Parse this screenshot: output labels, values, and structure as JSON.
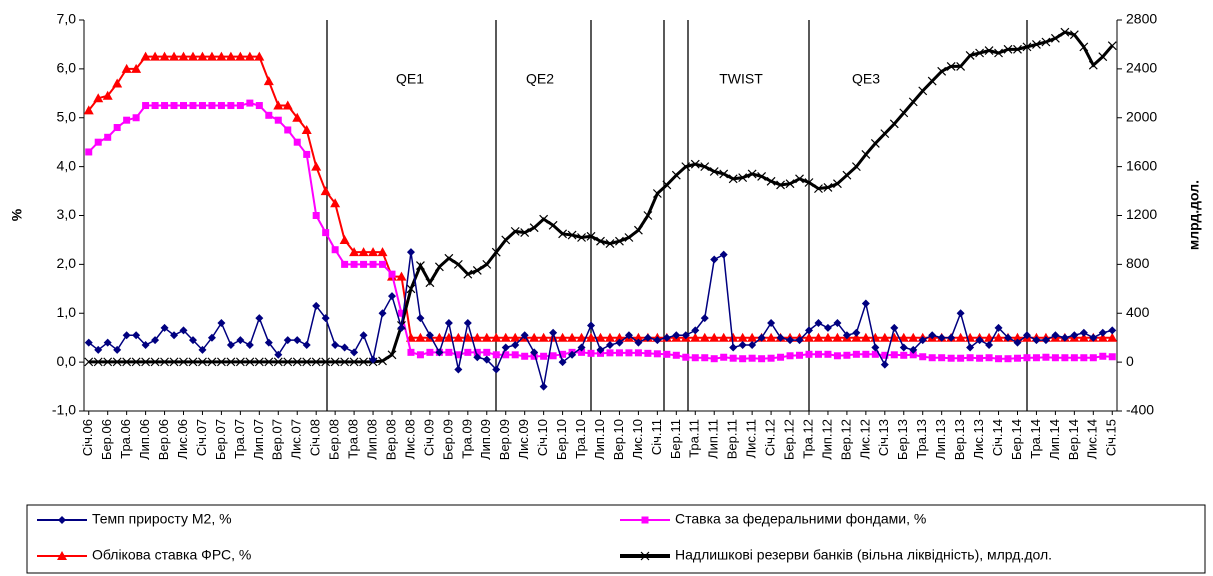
{
  "chart_data": {
    "type": "line",
    "categories": [
      "Січ.06",
      null,
      "Бер.06",
      null,
      "Тра.06",
      null,
      "Лип.06",
      null,
      "Вер.06",
      null,
      "Лис.06",
      null,
      "Січ.07",
      null,
      "Бер.07",
      null,
      "Тра.07",
      null,
      "Лип.07",
      null,
      "Вер.07",
      null,
      "Лис.07",
      null,
      "Січ.08",
      null,
      "Бер.08",
      null,
      "Тра.08",
      null,
      "Лип.08",
      null,
      "Вер.08",
      null,
      "Лис.08",
      null,
      "Січ.09",
      null,
      "Бер.09",
      null,
      "Тра.09",
      null,
      "Лип.09",
      null,
      "Вер.09",
      null,
      "Лис.09",
      null,
      "Січ.10",
      null,
      "Бер.10",
      null,
      "Тра.10",
      null,
      "Лип.10",
      null,
      "Вер.10",
      null,
      "Лис.10",
      null,
      "Січ.11",
      null,
      "Бер.11",
      null,
      "Тра.11",
      null,
      "Лип.11",
      null,
      "Вер.11",
      null,
      "Лис.11",
      null,
      "Січ.12",
      null,
      "Бер.12",
      null,
      "Тра.12",
      null,
      "Лип.12",
      null,
      "Вер.12",
      null,
      "Лис.12",
      null,
      "Січ.13",
      null,
      "Бер.13",
      null,
      "Тра.13",
      null,
      "Лип.13",
      null,
      "Вер.13",
      null,
      "Лис.13",
      null,
      "Січ.14",
      null,
      "Бер.14",
      null,
      "Тра.14",
      null,
      "Лип.14",
      null,
      "Вер.14",
      null,
      "Лис.14",
      null,
      "Січ.15"
    ],
    "series": [
      {
        "name": "Темп приросту М2, %",
        "color": "#000080",
        "marker": "diamond",
        "values": [
          0.4,
          0.25,
          0.4,
          0.25,
          0.55,
          0.55,
          0.35,
          0.45,
          0.7,
          0.55,
          0.65,
          0.45,
          0.25,
          0.5,
          0.8,
          0.35,
          0.45,
          0.35,
          0.9,
          0.4,
          0.15,
          0.45,
          0.45,
          0.35,
          1.15,
          0.9,
          0.35,
          0.3,
          0.2,
          0.55,
          0.05,
          1.0,
          1.35,
          0.7,
          2.25,
          0.9,
          0.55,
          0.2,
          0.8,
          -0.15,
          0.8,
          0.1,
          0.05,
          -0.15,
          0.3,
          0.35,
          0.55,
          0.2,
          -0.5,
          0.6,
          0.0,
          0.15,
          0.3,
          0.75,
          0.25,
          0.35,
          0.4,
          0.55,
          0.4,
          0.5,
          0.45,
          0.5,
          0.55,
          0.55,
          0.65,
          0.9,
          2.1,
          2.2,
          0.3,
          0.35,
          0.35,
          0.5,
          0.8,
          0.5,
          0.45,
          0.45,
          0.65,
          0.8,
          0.7,
          0.8,
          0.55,
          0.6,
          1.2,
          0.3,
          -0.05,
          0.7,
          0.3,
          0.25,
          0.45,
          0.55,
          0.5,
          0.5,
          1.0,
          0.3,
          0.45,
          0.35,
          0.7,
          0.5,
          0.4,
          0.55,
          0.45,
          0.45,
          0.55,
          0.5,
          0.55,
          0.6,
          0.5,
          0.6,
          0.65
        ]
      },
      {
        "name": "Ставка за федеральними фондами, %",
        "color": "#ff00ff",
        "marker": "square",
        "values": [
          4.3,
          4.5,
          4.6,
          4.8,
          4.95,
          5.0,
          5.25,
          5.25,
          5.25,
          5.25,
          5.25,
          5.25,
          5.25,
          5.25,
          5.25,
          5.25,
          5.25,
          5.3,
          5.25,
          5.05,
          4.95,
          4.75,
          4.5,
          4.25,
          3.0,
          2.65,
          2.3,
          2.0,
          2.0,
          2.0,
          2.0,
          2.0,
          1.8,
          1.0,
          0.2,
          0.15,
          0.2,
          0.2,
          0.2,
          0.15,
          0.2,
          0.2,
          0.2,
          0.15,
          0.15,
          0.15,
          0.12,
          0.12,
          0.12,
          0.13,
          0.16,
          0.2,
          0.2,
          0.18,
          0.18,
          0.19,
          0.19,
          0.19,
          0.19,
          0.18,
          0.17,
          0.16,
          0.14,
          0.1,
          0.09,
          0.09,
          0.07,
          0.1,
          0.08,
          0.07,
          0.08,
          0.07,
          0.08,
          0.1,
          0.13,
          0.14,
          0.16,
          0.16,
          0.16,
          0.13,
          0.14,
          0.16,
          0.16,
          0.16,
          0.14,
          0.15,
          0.14,
          0.15,
          0.11,
          0.09,
          0.09,
          0.08,
          0.08,
          0.09,
          0.08,
          0.09,
          0.07,
          0.07,
          0.08,
          0.09,
          0.09,
          0.1,
          0.09,
          0.09,
          0.09,
          0.09,
          0.09,
          0.12,
          0.11
        ]
      },
      {
        "name": "Облікова ставка ФРС, %",
        "color": "#ff0000",
        "marker": "triangle",
        "values": [
          5.15,
          5.4,
          5.45,
          5.7,
          6.0,
          6.0,
          6.25,
          6.25,
          6.25,
          6.25,
          6.25,
          6.25,
          6.25,
          6.25,
          6.25,
          6.25,
          6.25,
          6.25,
          6.25,
          5.75,
          5.25,
          5.25,
          5.0,
          4.75,
          4.0,
          3.5,
          3.25,
          2.5,
          2.25,
          2.25,
          2.25,
          2.25,
          1.75,
          1.75,
          0.5,
          0.5,
          0.5,
          0.5,
          0.5,
          0.5,
          0.5,
          0.5,
          0.5,
          0.5,
          0.5,
          0.5,
          0.5,
          0.5,
          0.5,
          0.5,
          0.5,
          0.5,
          0.5,
          0.5,
          0.5,
          0.5,
          0.5,
          0.5,
          0.5,
          0.5,
          0.5,
          0.5,
          0.5,
          0.5,
          0.5,
          0.5,
          0.5,
          0.5,
          0.5,
          0.5,
          0.5,
          0.5,
          0.5,
          0.5,
          0.5,
          0.5,
          0.5,
          0.5,
          0.5,
          0.5,
          0.5,
          0.5,
          0.5,
          0.5,
          0.5,
          0.5,
          0.5,
          0.5,
          0.5,
          0.5,
          0.5,
          0.5,
          0.5,
          0.5,
          0.5,
          0.5,
          0.5,
          0.5,
          0.5,
          0.5,
          0.5,
          0.5,
          0.5,
          0.5,
          0.5,
          0.5,
          0.5,
          0.5,
          0.5
        ]
      },
      {
        "name": "Надлишкові резерви банків (вільна ліквідність), млрд.дол.",
        "color": "#000000",
        "marker": "cross",
        "axis": "y2",
        "values": [
          2,
          2,
          2,
          2,
          2,
          2,
          2,
          2,
          2,
          2,
          2,
          2,
          2,
          2,
          2,
          2,
          2,
          2,
          2,
          2,
          2,
          2,
          2,
          2,
          2,
          2,
          2,
          2,
          2,
          2,
          2,
          10,
          60,
          300,
          600,
          790,
          650,
          780,
          850,
          800,
          720,
          750,
          800,
          900,
          1000,
          1070,
          1060,
          1100,
          1170,
          1120,
          1050,
          1040,
          1020,
          1030,
          990,
          970,
          990,
          1020,
          1080,
          1200,
          1380,
          1450,
          1530,
          1600,
          1620,
          1600,
          1560,
          1540,
          1500,
          1510,
          1540,
          1520,
          1480,
          1450,
          1460,
          1500,
          1470,
          1420,
          1430,
          1460,
          1530,
          1600,
          1700,
          1790,
          1870,
          1950,
          2040,
          2130,
          2220,
          2300,
          2380,
          2420,
          2420,
          2510,
          2530,
          2550,
          2530,
          2560,
          2560,
          2580,
          2600,
          2620,
          2650,
          2700,
          2680,
          2580,
          2430,
          2500,
          2590
        ]
      }
    ],
    "ylabel": "%",
    "y2label": "млрд.дол.",
    "ylim": [
      -1,
      7
    ],
    "yticks": [
      {
        "value": -1,
        "label": "-1,0"
      },
      {
        "value": 0,
        "label": "0,0"
      },
      {
        "value": 1,
        "label": "1,0"
      },
      {
        "value": 2,
        "label": "2,0"
      },
      {
        "value": 3,
        "label": "3,0"
      },
      {
        "value": 4,
        "label": "4,0"
      },
      {
        "value": 5,
        "label": "5,0"
      },
      {
        "value": 6,
        "label": "6,0"
      },
      {
        "value": 7,
        "label": "7,0"
      }
    ],
    "y2lim": [
      -400,
      2800
    ],
    "y2ticks": [
      -400,
      0,
      400,
      800,
      1200,
      1600,
      2000,
      2400,
      2800
    ],
    "annotations": [
      "QE1",
      "QE2",
      "TWIST",
      "QE3"
    ],
    "grid": false
  }
}
